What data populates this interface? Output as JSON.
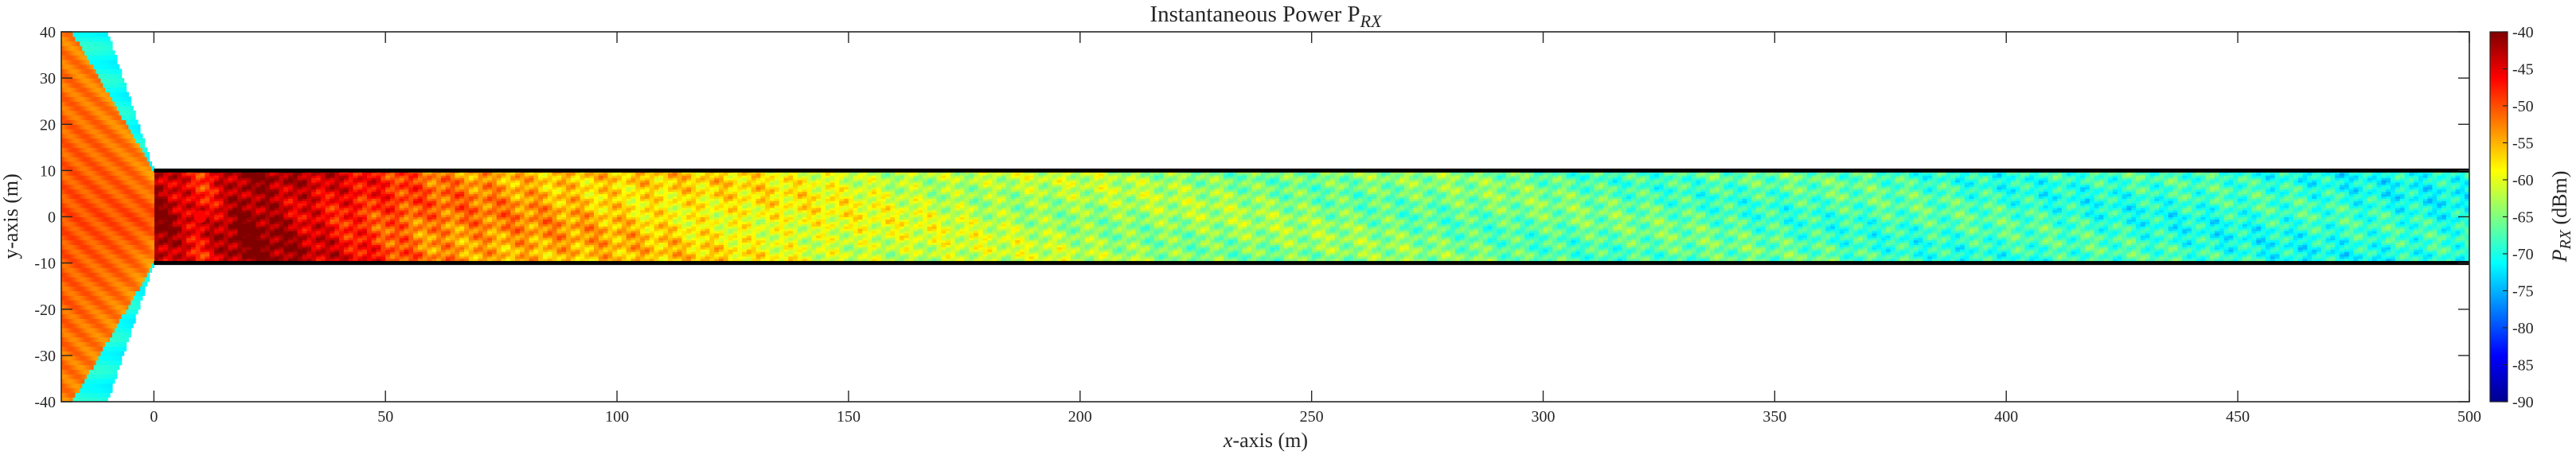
{
  "chart_data": {
    "type": "heatmap",
    "title": "Instantaneous Power P",
    "title_subscript": "RX",
    "xlabel_var": "x",
    "xlabel_rest": "-axis (m)",
    "ylabel": "y-axis (m)",
    "xlim": [
      -20,
      500
    ],
    "ylim": [
      -40,
      40
    ],
    "xticks": [
      "0",
      "50",
      "100",
      "150",
      "200",
      "250",
      "300",
      "350",
      "400",
      "450",
      "500"
    ],
    "yticks": [
      "-40",
      "-30",
      "-20",
      "-10",
      "0",
      "10",
      "20",
      "30",
      "40"
    ],
    "colorbar": {
      "label_var": "P",
      "label_sub": "RX",
      "label_unit": " (dBm)",
      "range": [
        -90,
        -40
      ],
      "ticks": [
        "-40",
        "-45",
        "-50",
        "-55",
        "-60",
        "-65",
        "-70",
        "-75",
        "-80",
        "-85",
        "-90"
      ],
      "colormap": "jet"
    },
    "tunnel": {
      "x_start": 0,
      "x_end": 500,
      "y_bottom": -10,
      "y_top": 10
    },
    "transmitter": {
      "x": 10,
      "y": 0
    },
    "aperture_cone": {
      "x_tip": 0,
      "half_width_at_tip": 10,
      "x_far": -10,
      "slope": 3
    },
    "power_profile": {
      "distance_m": [
        0,
        10,
        50,
        100,
        150,
        200,
        300,
        400,
        500
      ],
      "power_dbm": [
        -47,
        -40,
        -52,
        -57,
        -61,
        -63.5,
        -66.5,
        -68.5,
        -70
      ]
    },
    "cone_power_dbm": {
      "center": -50,
      "edge": -71
    }
  }
}
